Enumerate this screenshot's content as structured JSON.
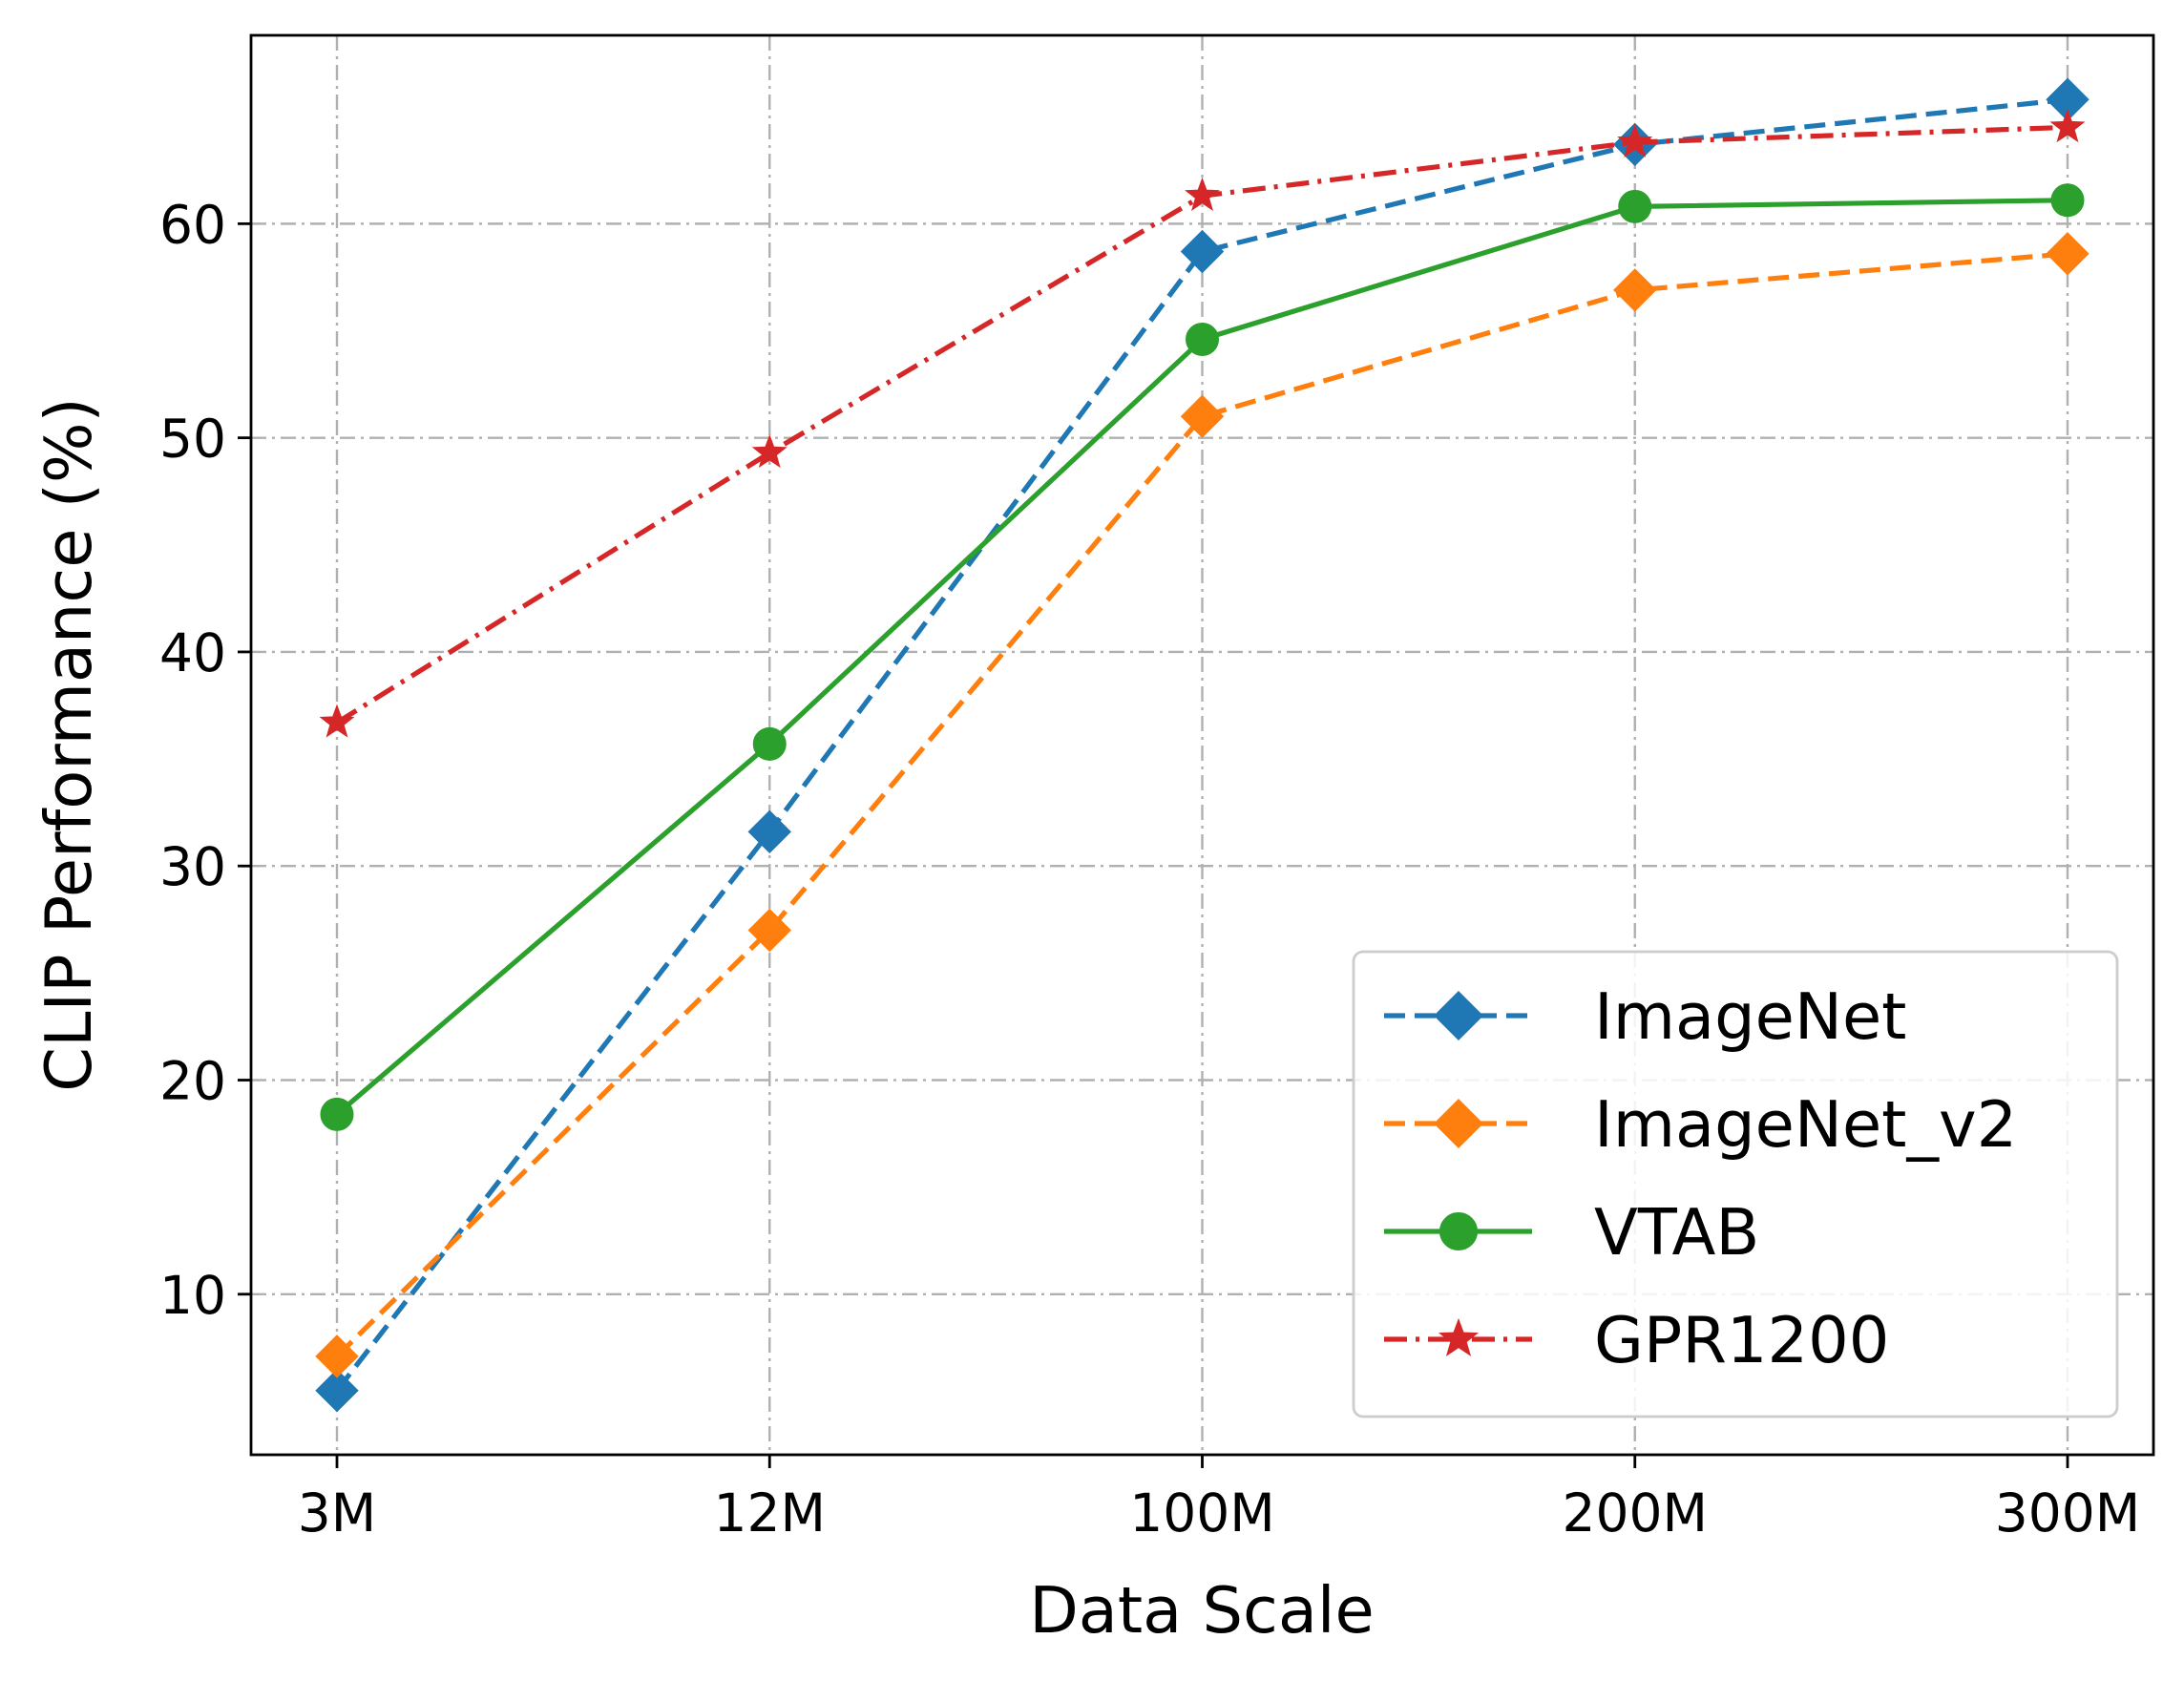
{
  "chart_data": {
    "type": "line",
    "title": "",
    "xlabel": "Data Scale",
    "ylabel": "CLIP Performance (%)",
    "categories": [
      "3M",
      "12M",
      "100M",
      "200M",
      "300M"
    ],
    "ylim": [
      2.5,
      68.8
    ],
    "yticks": [
      10,
      20,
      30,
      40,
      50,
      60
    ],
    "grid": true,
    "legend_position": "lower right",
    "series": [
      {
        "name": "ImageNet",
        "values": [
          5.5,
          31.6,
          58.7,
          63.7,
          65.8
        ],
        "color": "#1f77b4",
        "linestyle": "dashed",
        "marker": "diamond"
      },
      {
        "name": "ImageNet_v2",
        "values": [
          7.1,
          27.0,
          51.0,
          56.9,
          58.6
        ],
        "color": "#ff7f0e",
        "linestyle": "dashed",
        "marker": "diamond"
      },
      {
        "name": "VTAB",
        "values": [
          18.4,
          35.7,
          54.6,
          60.8,
          61.1
        ],
        "color": "#2ca02c",
        "linestyle": "solid",
        "marker": "circle"
      },
      {
        "name": "GPR1200",
        "values": [
          36.7,
          49.3,
          61.3,
          63.8,
          64.5
        ],
        "color": "#d62728",
        "linestyle": "dashdot",
        "marker": "star"
      }
    ]
  }
}
